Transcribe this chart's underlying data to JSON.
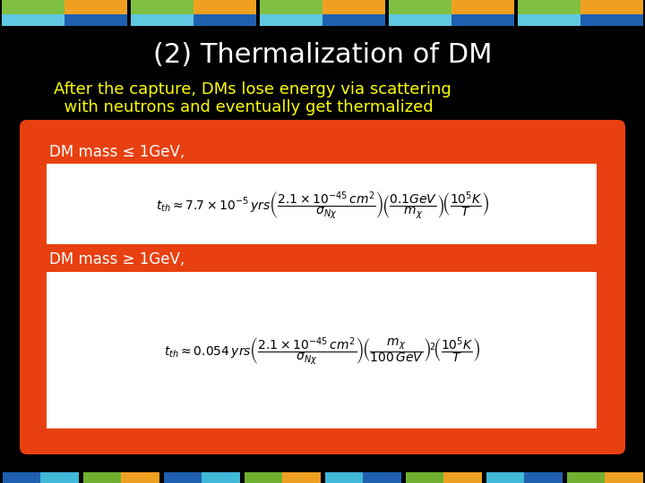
{
  "title": "(2) Thermalization of DM",
  "title_color": "#ffffff",
  "subtitle_line1": "After the capture, DMs lose energy via scattering",
  "subtitle_line2": "  with neutrons and eventually get thermalized",
  "subtitle_color": "#ffff00",
  "bg_color": "#000000",
  "orange_box_color": "#e84010",
  "formula_box_color": "#ffffff",
  "label1": "DM mass ≤ 1GeV,",
  "label2": "DM mass ≥ 1GeV,",
  "label_color": "#ffffff",
  "top_banner_top_left": "#80c040",
  "top_banner_top_right": "#f0a020",
  "top_banner_bot_left": "#60c8e0",
  "top_banner_bot_right": "#2060b0",
  "bot_banner_blue": "#2060b0",
  "bot_banner_green": "#70b030",
  "bot_banner_orange": "#f0a020",
  "bot_banner_cyan": "#40b8d8"
}
